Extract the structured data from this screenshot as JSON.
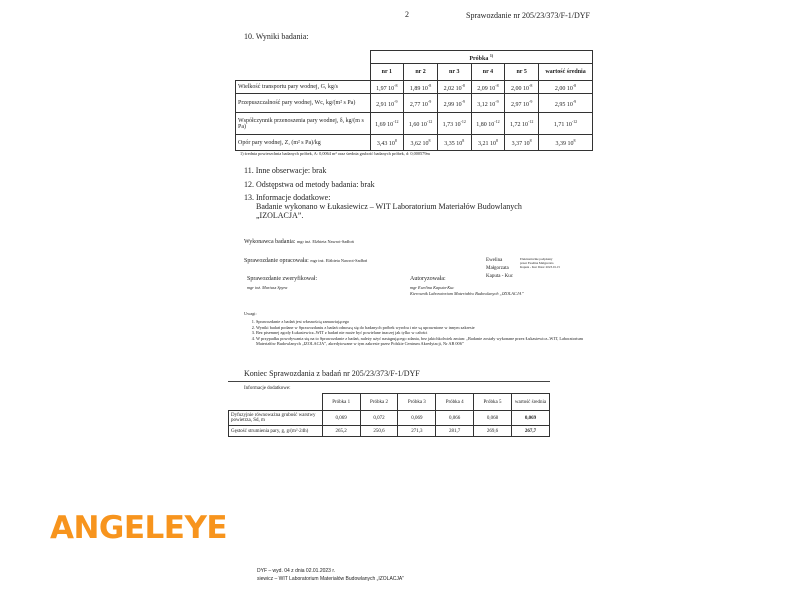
{
  "header": {
    "page_number": "2",
    "report_id": "Sprawozdanie nr 205/23/373/F-1/DYF"
  },
  "section10": {
    "title": "10. Wyniki badania:",
    "group_header": "Próbka",
    "group_footnote_mark": "1)",
    "columns": [
      "nr 1",
      "nr 2",
      "nr 3",
      "nr 4",
      "nr 5",
      "wartość średnia"
    ],
    "rows": [
      {
        "label": "Wielkość transportu pary wodnej, G, kg/s",
        "values": [
          [
            "1,97 10",
            "-8"
          ],
          [
            "1,89 10",
            "-8"
          ],
          [
            "2,02 10",
            "-8"
          ],
          [
            "2,09 10",
            "-8"
          ],
          [
            "2,00 10",
            "-8"
          ],
          [
            "2,00 10",
            "-8"
          ]
        ]
      },
      {
        "label": "Przepuszczalność pary wodnej, Wc, kg/(m² s Pa)",
        "values": [
          [
            "2,91 10",
            "-9"
          ],
          [
            "2,77 10",
            "-9"
          ],
          [
            "2,99 10",
            "-9"
          ],
          [
            "3,12 10",
            "-9"
          ],
          [
            "2,97 10",
            "-9"
          ],
          [
            "2,95 10",
            "-9"
          ]
        ]
      },
      {
        "label": "Współczynnik przenoszenia pary wodnej, δ, kg/(m s Pa)",
        "values": [
          [
            "1,69 10",
            "-12"
          ],
          [
            "1,60 10",
            "-12"
          ],
          [
            "1,73 10",
            "-12"
          ],
          [
            "1,80 10",
            "-12"
          ],
          [
            "1,72 10",
            "-12"
          ],
          [
            "1,71 10",
            "-12"
          ]
        ]
      },
      {
        "label": "Opór pary wodnej, Z, (m² s Pa)/kg",
        "values": [
          [
            "3,43 10",
            "8"
          ],
          [
            "3,62 10",
            "8"
          ],
          [
            "3,35 10",
            "8"
          ],
          [
            "3,21 10",
            "8"
          ],
          [
            "3,37 10",
            "8"
          ],
          [
            "3,39 10",
            "8"
          ]
        ]
      }
    ],
    "footnote": "1) średnia powierzchnia badanych próbek, A: 0,0064 m² oraz średnia grubość badanych próbek, d: 0,000579m"
  },
  "section11": "11. Inne obserwacje:  brak",
  "section12": "12. Odstępstwa od metody badania:  brak",
  "section13": {
    "title": "13. Informacje dodatkowe:",
    "line1": "Badanie wykonano w Łukasiewicz – WIT Laboratorium Materiałów Budowlanych",
    "line2": "„IZOLACJA”."
  },
  "signatures": {
    "performer_label": "Wykonawca badania:",
    "performer_name": "mgr inż. Elżbieta Nawrot-Sadłoń",
    "prepared_label": "Sprawozdanie opracowała:",
    "prepared_name": "mgr inż. Elżbieta Nawrot-Sadłoń",
    "verified_label": "Sprawozdanie zweryfikował:",
    "verified_name": "mgr inż. Mariusz Spyra",
    "authorized_label": "Autoryzowała:",
    "authorized_name": "mgr Ewelina Kaputa-Kuc",
    "authorized_role": "Kierownik Laboratorium Materiałów Budowlanych „IZOLACJA”",
    "esign_name": "Ewelina Małgorzata Kaputa - Kuc",
    "esign_details": "Elektronicznie podpisany przez Ewelina Małgorzata Kaputa - Kuc Data: 2023.01.15"
  },
  "notes": {
    "title": "Uwagi:",
    "items": [
      "Sprawozdanie z badań jest własnością zamawiającego",
      "Wyniki badań podane w Sprawozdaniu z badań odnoszą się do badanych próbek wyrobu i nie są uprawnione w innym zakresie",
      "Bez pisemnej zgody Łukasiewicz–WIT z badań nie może być powielane inaczej jak tylko w całości",
      "W przypadku powoływania się na to Sprawozdanie z badań, należy użyć następującego zdania, bez jakichkolwiek zmian: „Badanie zostały wykonane przez Łukasiewicz–WIT, Laboratorium Materiałów Budowlanych „IZOLACJA”, akredytowane w tym zakresie przez Polskie Centrum Akredytacji, Nr AB 006”"
    ]
  },
  "end_title": "Koniec Sprawozdania z badań nr 205/23/373/F-1/DYF",
  "extra": {
    "title": "Informacje dodatkowe:",
    "columns": [
      "Próbka 1",
      "Próbka 2",
      "Próbka 3",
      "Próbka 4",
      "Próbka 5",
      "wartość średnia"
    ],
    "rows": [
      {
        "label": "Dyfuzyjnie równoważna grubość warstwy powietrza, Sd, m",
        "values": [
          "0,069",
          "0,072",
          "0,069",
          "0,066",
          "0,068",
          "0,069"
        ]
      },
      {
        "label": "Gęstość strumienia pary, g, g/(m²·24h)",
        "values": [
          "265,2",
          "250,6",
          "271,3",
          "281,7",
          "269,6",
          "267,7"
        ]
      }
    ]
  },
  "footer": {
    "line1": "DYF – wyd. 04 z dnia 02.01.2023 r.",
    "line2": "siewicz – WIT Laboratorium Materiałów Budowlanych „IZOLACJA”"
  },
  "watermark": {
    "text": "ANGELEYE",
    "color": "#f7941d"
  }
}
